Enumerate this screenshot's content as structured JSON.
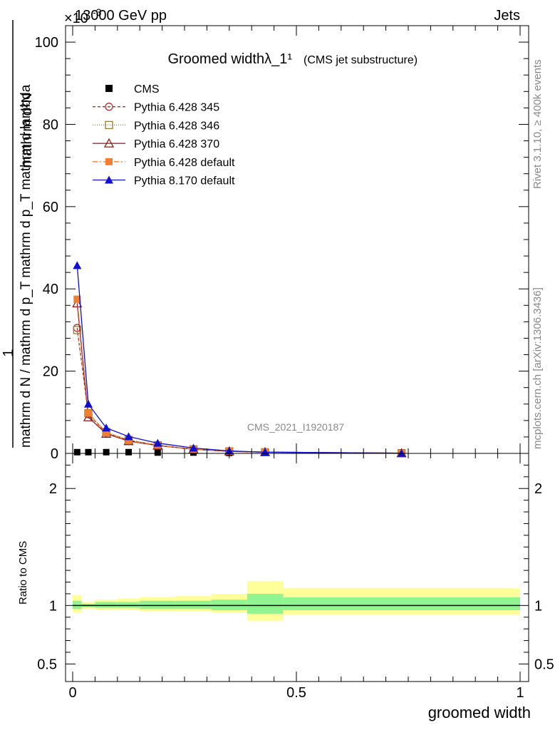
{
  "header": {
    "left": "13000 GeV pp",
    "right": "Jets",
    "exponent": "×10",
    "exponent_power": "-3"
  },
  "side_labels": {
    "rivet": "Rivet 3.1.10, ≥ 400k events",
    "mcplots": "mcplots.cern.ch [arXiv:1306.3436]"
  },
  "watermark": "CMS_2021_I1920187",
  "chart_data": [
    {
      "type": "line",
      "title": "Groomed widthλ_1¹",
      "subtitle": "(CMS jet substructure)",
      "ylabel_numerator": "1",
      "ylabel_denominator": "mathrm d N / mathrm d p_T mathrm d p_T mathrm d lambda",
      "ylabel_derivative": "mathrm d²N",
      "xlim": [
        0,
        1
      ],
      "ylim": [
        0,
        104
      ],
      "y_ticks": [
        0,
        20,
        40,
        60,
        80,
        100
      ],
      "x_bin_edges": [
        0,
        0.02,
        0.05,
        0.1,
        0.15,
        0.23,
        0.31,
        0.39,
        0.47,
        1.0
      ],
      "x": [
        0.01,
        0.035,
        0.075,
        0.125,
        0.19,
        0.27,
        0.35,
        0.43,
        0.735
      ],
      "legend_position": "top-left",
      "series": [
        {
          "name": "CMS",
          "color": "#000000",
          "marker": "filled-square",
          "dash": "",
          "values": [
            0.3,
            0.3,
            0.3,
            0.3,
            0.2,
            0.2,
            0.1,
            0.1,
            0.05
          ]
        },
        {
          "name": "Pythia 6.428 345",
          "color": "#b03030",
          "marker": "open-circle",
          "dash": "4,3",
          "values": [
            30.5,
            9.5,
            5.0,
            3.2,
            2.0,
            1.0,
            0.5,
            0.3,
            0.05
          ]
        },
        {
          "name": "Pythia 6.428 346",
          "color": "#9a7a30",
          "marker": "open-square",
          "dash": "1,2",
          "values": [
            30.0,
            9.8,
            5.2,
            3.3,
            2.0,
            1.0,
            0.5,
            0.3,
            0.05
          ]
        },
        {
          "name": "Pythia 6.428 370",
          "color": "#8b1a1a",
          "marker": "open-triangle",
          "dash": "",
          "values": [
            36.5,
            8.8,
            4.8,
            3.0,
            1.9,
            1.0,
            0.5,
            0.3,
            0.05
          ]
        },
        {
          "name": "Pythia 6.428 default",
          "color": "#f07f30",
          "marker": "filled-square",
          "dash": "7,3,2,3",
          "values": [
            37.5,
            9.8,
            5.0,
            3.1,
            2.0,
            1.0,
            0.5,
            0.3,
            0.05
          ]
        },
        {
          "name": "Pythia 8.170 default",
          "color": "#1010d0",
          "marker": "filled-triangle",
          "dash": "",
          "values": [
            45.7,
            12.0,
            6.2,
            4.1,
            2.5,
            1.3,
            0.6,
            0.3,
            0.05
          ]
        }
      ]
    },
    {
      "type": "line",
      "ylabel": "Ratio to CMS",
      "xlabel": "groomed width",
      "xlim": [
        0,
        1
      ],
      "ylim": [
        0.35,
        2.3
      ],
      "y_ticks": [
        0.5,
        1,
        2
      ],
      "x_ticks": [
        0,
        0.5,
        1
      ],
      "reference_line": 1,
      "uncertainty_bands": {
        "x_bin_edges": [
          0,
          0.02,
          0.05,
          0.1,
          0.15,
          0.23,
          0.31,
          0.39,
          0.47,
          1.0
        ],
        "outer": [
          [
            0.94,
            1.09
          ],
          [
            0.97,
            1.03
          ],
          [
            0.96,
            1.05
          ],
          [
            0.96,
            1.06
          ],
          [
            0.95,
            1.07
          ],
          [
            0.95,
            1.08
          ],
          [
            0.94,
            1.1
          ],
          [
            0.87,
            1.21
          ],
          [
            0.92,
            1.15
          ]
        ],
        "inner": [
          [
            0.97,
            1.04
          ],
          [
            0.985,
            1.015
          ],
          [
            0.98,
            1.03
          ],
          [
            0.98,
            1.03
          ],
          [
            0.97,
            1.04
          ],
          [
            0.97,
            1.04
          ],
          [
            0.96,
            1.05
          ],
          [
            0.93,
            1.1
          ],
          [
            0.96,
            1.07
          ]
        ],
        "outer_color": "#ffff99",
        "inner_color": "#90f590"
      }
    }
  ]
}
